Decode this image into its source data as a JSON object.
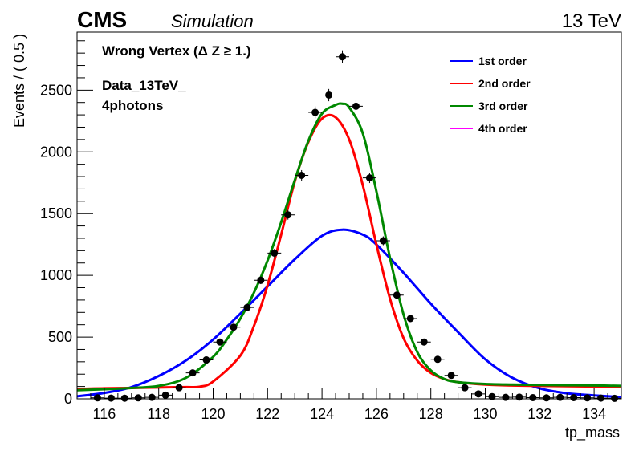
{
  "header": {
    "experiment": "CMS",
    "status": "Simulation",
    "energy": "13 TeV"
  },
  "annotations": {
    "line1": "Wrong Vertex (Δ Z ≥ 1.)",
    "line2": "Data_13TeV_",
    "line3": "4photons"
  },
  "chart_data": {
    "type": "scatter",
    "title": "",
    "xlabel": "tp_mass",
    "ylabel": "Events / ( 0.5 )",
    "xlim": [
      115,
      135
    ],
    "ylim": [
      0,
      2970
    ],
    "x_ticks": [
      116,
      118,
      120,
      122,
      124,
      126,
      128,
      130,
      132,
      134
    ],
    "y_ticks": [
      0,
      500,
      1000,
      1500,
      2000,
      2500
    ],
    "bin_width": 0.5,
    "data_points": {
      "x": [
        115.75,
        116.25,
        116.75,
        117.25,
        117.75,
        118.25,
        118.75,
        119.25,
        119.75,
        120.25,
        120.75,
        121.25,
        121.75,
        122.25,
        122.75,
        123.25,
        123.75,
        124.25,
        124.75,
        125.25,
        125.75,
        126.25,
        126.75,
        127.25,
        127.75,
        128.25,
        128.75,
        129.25,
        129.75,
        130.25,
        130.75,
        131.25,
        131.75,
        132.25,
        132.75,
        133.25,
        133.75,
        134.25,
        134.75
      ],
      "y": [
        8,
        6,
        5,
        8,
        12,
        30,
        90,
        210,
        315,
        460,
        580,
        740,
        960,
        1180,
        1490,
        1810,
        2320,
        2460,
        2770,
        2370,
        1790,
        1280,
        840,
        650,
        460,
        320,
        190,
        90,
        40,
        18,
        12,
        14,
        10,
        8,
        12,
        10,
        8,
        6,
        4
      ]
    },
    "series": [
      {
        "name": "1st order",
        "color": "#0000ff",
        "x": [
          115,
          116,
          117,
          118,
          119,
          120,
          121,
          122,
          123,
          124,
          124.75,
          125.5,
          126,
          127,
          128,
          129,
          130,
          131,
          132,
          133,
          134,
          135
        ],
        "y": [
          20,
          48,
          95,
          185,
          310,
          480,
          690,
          910,
          1130,
          1320,
          1370,
          1330,
          1250,
          1020,
          770,
          540,
          320,
          170,
          85,
          45,
          28,
          15
        ]
      },
      {
        "name": "2nd order",
        "color": "#ff0000",
        "x": [
          115,
          116,
          117,
          118,
          119,
          119.5,
          120,
          121,
          121.5,
          122,
          122.5,
          123,
          123.5,
          124,
          124.5,
          125,
          125.5,
          126,
          126.5,
          127,
          127.5,
          128,
          128.5,
          129,
          130,
          131,
          132,
          133,
          134,
          135
        ],
        "y": [
          80,
          85,
          88,
          92,
          95,
          98,
          140,
          350,
          590,
          920,
          1330,
          1760,
          2080,
          2270,
          2280,
          2100,
          1730,
          1250,
          810,
          490,
          310,
          210,
          160,
          135,
          115,
          108,
          105,
          102,
          100,
          100
        ]
      },
      {
        "name": "3rd order",
        "color": "#008800",
        "x": [
          115,
          116,
          117,
          118,
          119,
          120,
          120.5,
          121,
          121.5,
          122,
          122.5,
          123,
          123.5,
          124,
          124.5,
          124.75,
          125,
          125.5,
          126,
          126.5,
          127,
          127.5,
          128,
          128.5,
          129,
          130,
          131,
          132,
          133,
          134,
          135
        ],
        "y": [
          70,
          78,
          88,
          105,
          170,
          340,
          480,
          650,
          860,
          1120,
          1430,
          1770,
          2090,
          2310,
          2380,
          2390,
          2360,
          2150,
          1680,
          1140,
          680,
          380,
          230,
          160,
          135,
          120,
          115,
          112,
          110,
          108,
          105
        ]
      },
      {
        "name": "4th order",
        "color": "#ff00ff",
        "x": [],
        "y": []
      }
    ],
    "legend_position": "top-right",
    "grid": false
  }
}
